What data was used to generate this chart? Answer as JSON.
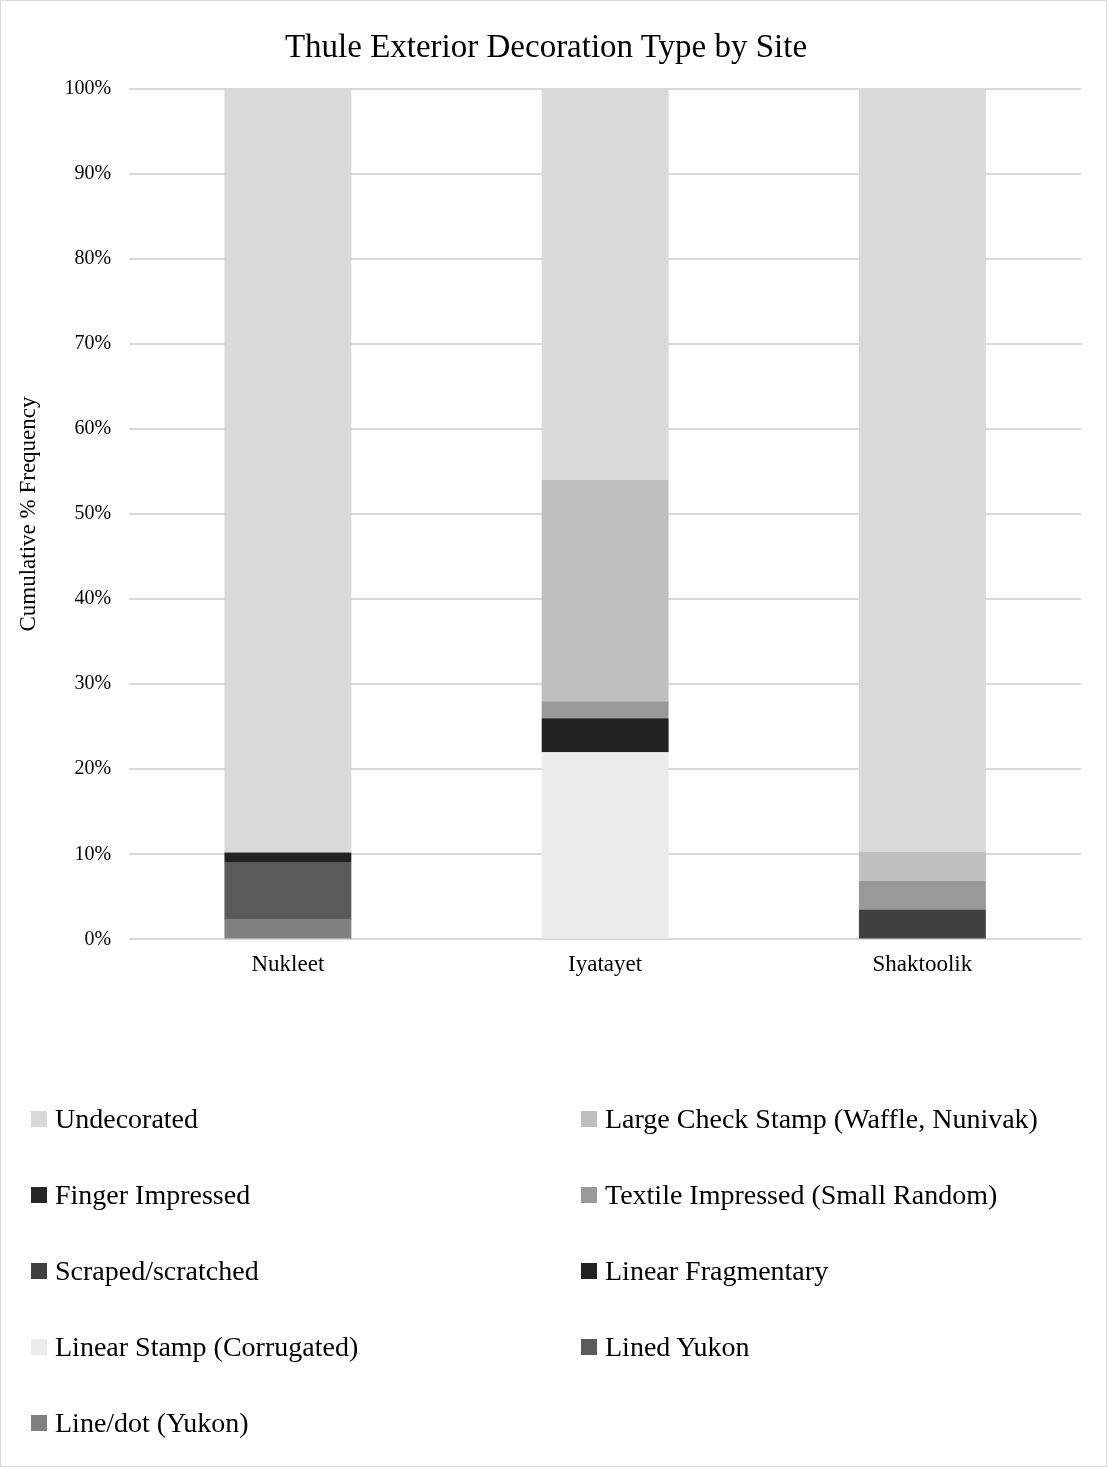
{
  "chart_data": {
    "type": "bar",
    "title": "Thule Exterior Decoration Type by Site",
    "ylabel": "Cumulative % Frequency",
    "categories": [
      "Nukleet",
      "Iyatayet",
      "Shaktoolik"
    ],
    "stacked": true,
    "legend": "bottom",
    "grid": "y",
    "ylim": [
      0,
      100
    ],
    "yticks": [
      {
        "value": 0,
        "label": "0%"
      },
      {
        "value": 10,
        "label": "10%"
      },
      {
        "value": 20,
        "label": "20%"
      },
      {
        "value": 30,
        "label": "30%"
      },
      {
        "value": 40,
        "label": "40%"
      },
      {
        "value": 50,
        "label": "50%"
      },
      {
        "value": 60,
        "label": "60%"
      },
      {
        "value": 70,
        "label": "70%"
      },
      {
        "value": 80,
        "label": "80%"
      },
      {
        "value": 90,
        "label": "90%"
      },
      {
        "value": 100,
        "label": "100%"
      }
    ],
    "series": [
      {
        "name": "Line/dot (Yukon)",
        "color": "#808080",
        "values": [
          2.3,
          0,
          0
        ]
      },
      {
        "name": "Lined Yukon",
        "color": "#5a5a5a",
        "values": [
          6.7,
          0,
          0
        ]
      },
      {
        "name": "Linear Stamp (Corrugated)",
        "color": "#ececec",
        "values": [
          0,
          22,
          0
        ]
      },
      {
        "name": "Linear Fragmentary",
        "color": "#222222",
        "values": [
          1.2,
          4,
          0
        ]
      },
      {
        "name": "Scraped/scratched",
        "color": "#404040",
        "values": [
          0,
          0,
          3.5
        ]
      },
      {
        "name": "Textile Impressed (Small Random)",
        "color": "#999999",
        "values": [
          0,
          2,
          3.4
        ]
      },
      {
        "name": "Finger Impressed",
        "color": "#262626",
        "values": [
          0,
          0,
          0
        ]
      },
      {
        "name": "Large Check Stamp (Waffle, Nunivak)",
        "color": "#bfbfbf",
        "values": [
          0,
          26,
          3.4
        ]
      },
      {
        "name": "Undecorated",
        "color": "#d9d9d9",
        "values": [
          89.8,
          46,
          89.7
        ]
      }
    ]
  }
}
